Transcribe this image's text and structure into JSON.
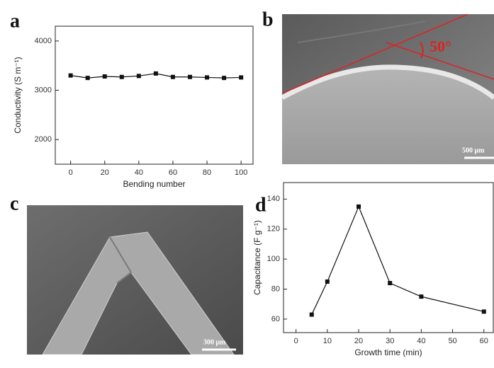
{
  "panel_labels": [
    "a",
    "b",
    "c",
    "d"
  ],
  "images": [
    {
      "angle_label": "50°",
      "scale_bar": "500 μm"
    },
    {
      "scale_bar": "300 μm"
    }
  ],
  "chart_data": [
    {
      "type": "line",
      "x_label": "Bending number",
      "y_label": "Conductivity (S m⁻¹)",
      "x": [
        0,
        10,
        20,
        30,
        40,
        50,
        60,
        70,
        80,
        90,
        100
      ],
      "series": [
        {
          "color": "#111111",
          "values": [
            3300,
            3250,
            3280,
            3270,
            3290,
            3340,
            3270,
            3270,
            3260,
            3250,
            3260
          ]
        }
      ],
      "xlim": [
        -9,
        107
      ],
      "ylim": [
        1500,
        4300
      ],
      "xticks": [
        0,
        20,
        40,
        60,
        80,
        100
      ],
      "yticks": [
        2000,
        3000,
        4000
      ]
    },
    {
      "type": "line",
      "x_label": "Growth time (min)",
      "y_label": "Capacitance (F g⁻¹)",
      "x": [
        5,
        10,
        20,
        30,
        40,
        60
      ],
      "series": [
        {
          "color": "#111111",
          "values": [
            63,
            85,
            135,
            84,
            75,
            65
          ]
        }
      ],
      "xlim": [
        -4,
        63
      ],
      "ylim": [
        51,
        151
      ],
      "xticks": [
        0,
        10,
        20,
        30,
        40,
        50,
        60
      ],
      "yticks": [
        60,
        80,
        100,
        120,
        140
      ]
    }
  ]
}
